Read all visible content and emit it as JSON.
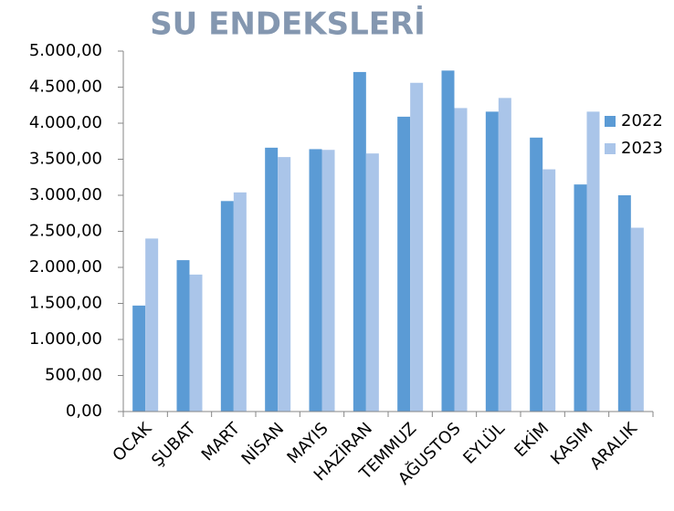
{
  "chart_data": {
    "type": "bar",
    "title": "SU ENDEKSLERİ",
    "categories": [
      "OCAK",
      "ŞUBAT",
      "MART",
      "NİSAN",
      "MAYIS",
      "HAZİRAN",
      "TEMMUZ",
      "AĞUSTOS",
      "EYLÜL",
      "EKİM",
      "KASIM",
      "ARALIK"
    ],
    "series": [
      {
        "name": "2022",
        "color": "#5b9bd5",
        "values": [
          1470,
          2100,
          2920,
          3660,
          3640,
          4710,
          4090,
          4730,
          4160,
          3800,
          3150,
          3000
        ]
      },
      {
        "name": "2023",
        "color": "#aac5e9",
        "values": [
          2400,
          1900,
          3040,
          3530,
          3630,
          3580,
          4560,
          4210,
          4350,
          3360,
          4160,
          2550
        ]
      }
    ],
    "ylim": [
      0,
      5000
    ],
    "yticks": [
      {
        "value": 0,
        "label": "0,00"
      },
      {
        "value": 500,
        "label": "500,00"
      },
      {
        "value": 1000,
        "label": "1.000,00"
      },
      {
        "value": 1500,
        "label": "1.500,00"
      },
      {
        "value": 2000,
        "label": "2.000,00"
      },
      {
        "value": 2500,
        "label": "2.500,00"
      },
      {
        "value": 3000,
        "label": "3.000,00"
      },
      {
        "value": 3500,
        "label": "3.500,00"
      },
      {
        "value": 4000,
        "label": "4.000,00"
      },
      {
        "value": 4500,
        "label": "4.500,00"
      },
      {
        "value": 5000,
        "label": "5.000,00"
      }
    ],
    "grid": false,
    "legend": "right"
  }
}
